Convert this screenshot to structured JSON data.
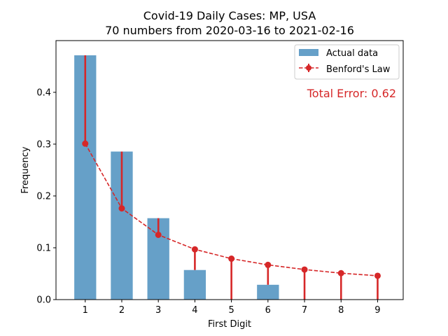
{
  "chart_data": {
    "type": "bar",
    "title": "Covid-19 Daily Cases: MP, USA",
    "subtitle": "70 numbers from 2020-03-16 to 2021-02-16",
    "xlabel": "First Digit",
    "ylabel": "Frequency",
    "categories": [
      "1",
      "2",
      "3",
      "4",
      "5",
      "6",
      "7",
      "8",
      "9"
    ],
    "x": [
      1,
      2,
      3,
      4,
      5,
      6,
      7,
      8,
      9
    ],
    "xlim": [
      0.2,
      9.7
    ],
    "ylim": [
      0,
      0.4998
    ],
    "yticks": [
      0.0,
      0.1,
      0.2,
      0.3,
      0.4
    ],
    "ytick_labels": [
      "0.0",
      "0.1",
      "0.2",
      "0.3",
      "0.4"
    ],
    "series": [
      {
        "name": "Actual data",
        "type": "bar",
        "values": [
          0.4714,
          0.2857,
          0.1571,
          0.0571,
          0.0,
          0.0286,
          0.0,
          0.0,
          0.0
        ],
        "color": "#66a0c8"
      },
      {
        "name": "Benford's Law",
        "type": "line",
        "values": [
          0.301,
          0.176,
          0.125,
          0.097,
          0.079,
          0.067,
          0.058,
          0.051,
          0.046
        ],
        "color": "#d62728"
      }
    ],
    "annotation": "Total Error: 0.62",
    "annotation_color": "#d62728",
    "legend_position": "top-right",
    "grid": false
  }
}
